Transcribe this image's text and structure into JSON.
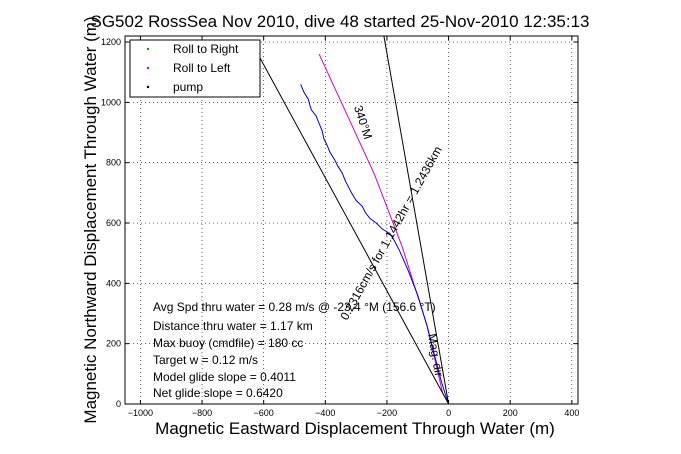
{
  "chart_data": {
    "type": "line",
    "title": "SG502 RossSea Nov 2010, dive 48 started 25-Nov-2010 12:35:13",
    "xlabel": "Magnetic Eastward Displacement Through Water (m)",
    "ylabel": "Magnetic Northward Displacement Through Water (m)",
    "xlim": [
      -1050,
      420
    ],
    "ylim": [
      0,
      1220
    ],
    "xticks": [
      -1000,
      -800,
      -600,
      -400,
      -200,
      0,
      200,
      400
    ],
    "yticks": [
      0,
      200,
      400,
      600,
      800,
      1000,
      1200
    ],
    "grid": true,
    "legend_position": "top-left",
    "legend": [
      {
        "label": "Roll to Right",
        "color": "#00a000"
      },
      {
        "label": "Roll to Left",
        "color": "#d000d0"
      },
      {
        "label": "pump",
        "color": "#000000"
      }
    ],
    "series": [
      {
        "name": "Roll to Left",
        "color": "#d000d0",
        "x": [
          -420,
          -330,
          -240,
          -150,
          -70,
          -20
        ],
        "y": [
          1160,
          960,
          760,
          520,
          260,
          40
        ]
      },
      {
        "name": "track",
        "color": "#0000cc",
        "x": [
          -480,
          -470,
          -455,
          -450,
          -445,
          -430,
          -420,
          -410,
          -405,
          -395,
          -385,
          -370,
          -360,
          -345,
          -335,
          -325,
          -315,
          -300,
          -280,
          -270,
          -255,
          -235,
          -215,
          -190,
          -175,
          -160,
          -145,
          -130,
          -115,
          -100,
          -85,
          -70,
          -55,
          -40,
          -25,
          -10,
          0
        ],
        "y": [
          1060,
          1035,
          1010,
          990,
          975,
          955,
          930,
          905,
          880,
          860,
          835,
          810,
          790,
          765,
          740,
          720,
          700,
          675,
          655,
          635,
          615,
          600,
          580,
          565,
          540,
          510,
          475,
          440,
          400,
          360,
          310,
          260,
          200,
          140,
          80,
          30,
          0
        ]
      },
      {
        "name": "",
        "color": "#000000",
        "x": [
          0,
          -640
        ],
        "y": [
          0,
          1200
        ]
      },
      {
        "name": "",
        "color": "#000000",
        "x": [
          0,
          -210
        ],
        "y": [
          0,
          1220
        ]
      }
    ],
    "annotations": [
      {
        "text": "340°M",
        "x": -290,
        "y": 930,
        "angle": 72
      },
      {
        "text": "0.2316cm/s for 1.1442hr = 1.2436km",
        "x": -175,
        "y": 560,
        "angle": -61
      },
      {
        "text": "Mag. dir",
        "x": -55,
        "y": 160,
        "angle": 80
      }
    ]
  },
  "stats": {
    "avg_speed": "Avg Spd thru water =  0.28 m/s @ -23.4 °M (156.6 °T)",
    "distance": "Distance thru water =  1.17 km",
    "max_buoy": "Max buoy (cmdfile) = 180 cc",
    "target_w": "Target w = 0.12 m/s",
    "model_glide": "Model glide slope = 0.4011",
    "net_glide": "Net glide slope = 0.6420"
  }
}
